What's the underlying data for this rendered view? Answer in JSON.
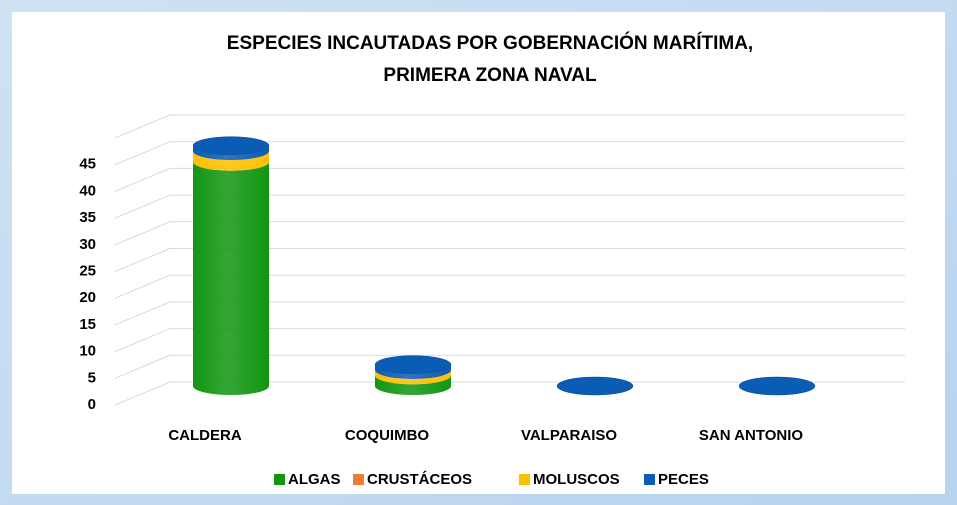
{
  "chart_data": {
    "type": "bar3d-stacked",
    "title": "ESPECIES INCAUTADAS POR GOBERNACIÓN MARÍTIMA,",
    "subtitle": "PRIMERA ZONA NAVAL",
    "categories": [
      "CALDERA",
      "COQUIMBO",
      "VALPARAISO",
      "SAN ANTONIO"
    ],
    "series": [
      {
        "name": "ALGAS",
        "color": "#129612",
        "values": [
          42,
          2,
          0,
          0
        ]
      },
      {
        "name": "CRUSTÁCEOS",
        "color": "#ed7d31",
        "values": [
          0,
          0,
          0,
          0
        ]
      },
      {
        "name": "MOLUSCOS",
        "color": "#ffc000",
        "values": [
          2,
          1,
          0,
          0
        ]
      },
      {
        "name": "PECES",
        "color": "#0b5cb5",
        "values": [
          1,
          1,
          0,
          0
        ]
      }
    ],
    "ylim": [
      0,
      50
    ],
    "yticks": [
      0,
      5,
      10,
      15,
      20,
      25,
      30,
      35,
      40,
      45
    ],
    "grid": true,
    "legend": "bottom"
  }
}
